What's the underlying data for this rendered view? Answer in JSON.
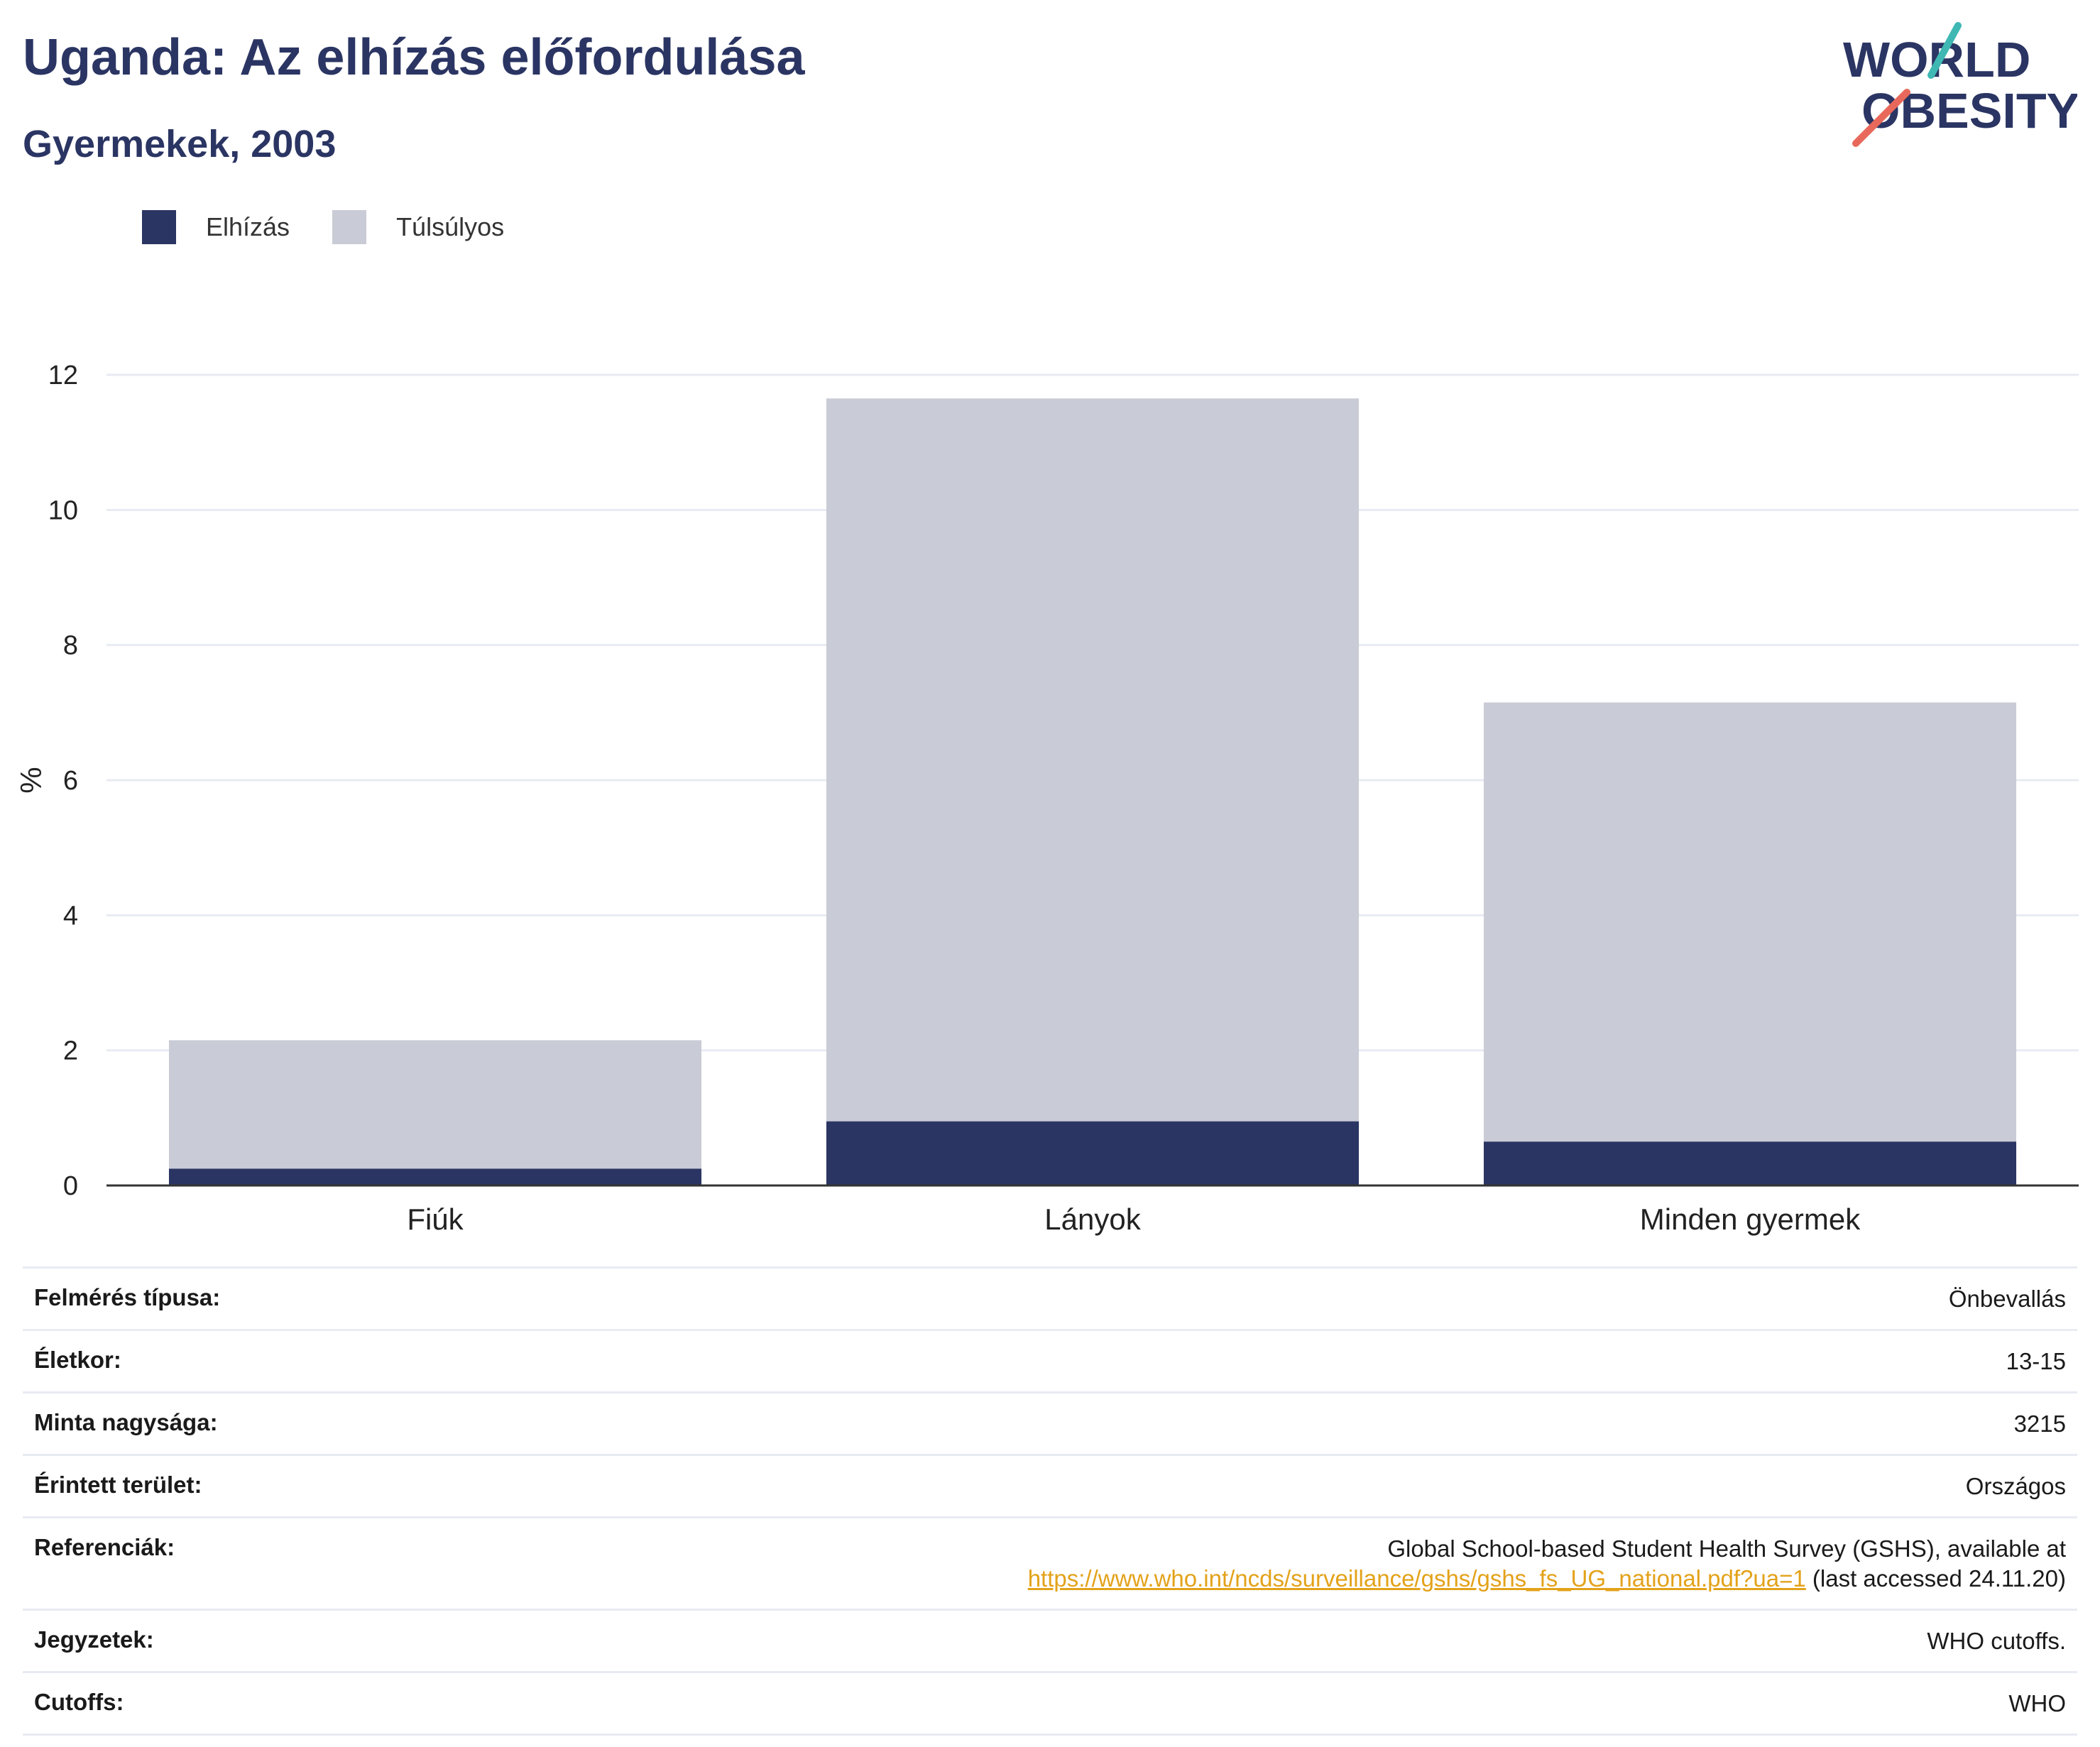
{
  "header": {
    "title": "Uganda: Az elhízás előfordulása",
    "subtitle": "Gyermekek, 2003"
  },
  "logo": {
    "line1": "WORLD",
    "line2": "OBESITY"
  },
  "colors": {
    "obesity": "#2b3563",
    "overweight": "#c9cbd6",
    "title": "#2b3563",
    "link": "#e3a21a",
    "logo_teal": "#3fb8b4",
    "logo_coral": "#e8695b"
  },
  "chart_data": {
    "type": "bar",
    "stacked": true,
    "categories": [
      "Fiúk",
      "Lányok",
      "Minden gyermek"
    ],
    "series": [
      {
        "name": "Elhízás",
        "values": [
          0.25,
          0.95,
          0.65
        ]
      },
      {
        "name": "Túlsúlyos",
        "values": [
          1.9,
          10.7,
          6.5
        ]
      }
    ],
    "ylabel": "%",
    "ylim": [
      0,
      12
    ],
    "yticks": [
      "0",
      "2",
      "4",
      "6",
      "8",
      "10",
      "12"
    ],
    "grid": true,
    "legend": "top-left"
  },
  "meta": [
    {
      "key": "Felmérés típusa:",
      "value": "Önbevallás"
    },
    {
      "key": "Életkor:",
      "value": "13-15"
    },
    {
      "key": "Minta nagysága:",
      "value": "3215"
    },
    {
      "key": "Érintett terület:",
      "value": "Országos"
    },
    {
      "key": "Referenciák:",
      "value_line1": "Global School-based Student Health Survey (GSHS), available at",
      "link": "https://www.who.int/ncds/surveillance/gshs/gshs_fs_UG_national.pdf?ua=1",
      "value_tail": " (last accessed 24.11.20)"
    },
    {
      "key": "Jegyzetek:",
      "value": "WHO cutoffs."
    },
    {
      "key": "Cutoffs:",
      "value": "WHO"
    }
  ]
}
